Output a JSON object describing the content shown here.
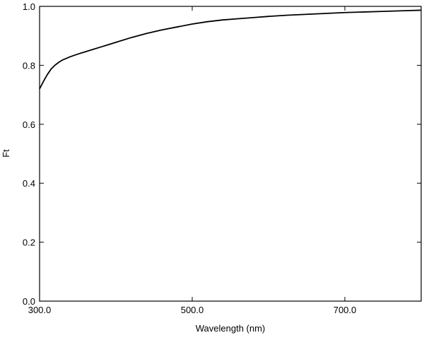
{
  "chart_data": {
    "type": "line",
    "title": "",
    "xlabel": "Wavelength (nm)",
    "ylabel": "Ft",
    "xlim": [
      300.0,
      800.0
    ],
    "ylim": [
      0.0,
      1.0
    ],
    "grid": false,
    "x_ticks": [
      300.0,
      500.0,
      700.0
    ],
    "x_tick_labels": [
      "300.0",
      "500.0",
      "700.0"
    ],
    "y_ticks": [
      0.0,
      0.2,
      0.4,
      0.6,
      0.8,
      1.0
    ],
    "y_tick_labels": [
      "0.0",
      "0.2",
      "0.4",
      "0.6",
      "0.8",
      "1.0"
    ],
    "series": [
      {
        "x": [
          300,
          305,
          310,
          315,
          320,
          325,
          330,
          340,
          350,
          360,
          370,
          380,
          390,
          400,
          420,
          440,
          460,
          480,
          500,
          520,
          540,
          560,
          580,
          600,
          625,
          650,
          675,
          700,
          725,
          750,
          775,
          800
        ],
        "y": [
          0.72,
          0.745,
          0.768,
          0.787,
          0.8,
          0.81,
          0.818,
          0.829,
          0.838,
          0.846,
          0.854,
          0.862,
          0.87,
          0.878,
          0.894,
          0.908,
          0.92,
          0.93,
          0.94,
          0.948,
          0.954,
          0.958,
          0.962,
          0.966,
          0.97,
          0.973,
          0.976,
          0.979,
          0.981,
          0.983,
          0.985,
          0.987
        ]
      }
    ],
    "line_color": "#000000"
  }
}
